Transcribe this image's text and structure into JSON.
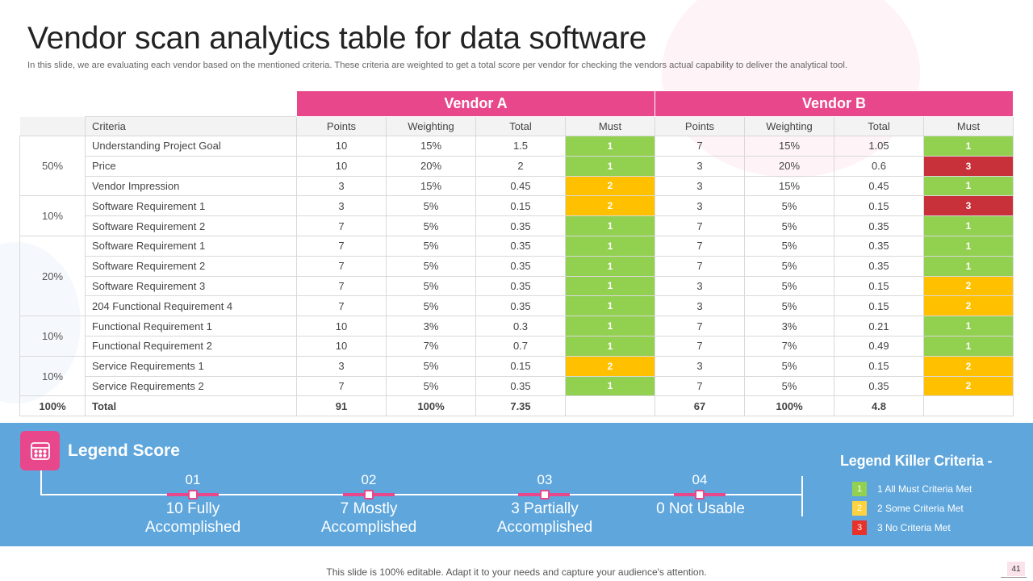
{
  "title": "Vendor scan analytics table for data software",
  "subtitle": "In this slide, we are evaluating each vendor based on the mentioned criteria. These criteria are weighted to get a total score per vendor for checking the vendors actual capability to  deliver the analytical tool.",
  "table": {
    "vendor_a": "Vendor A",
    "vendor_b": "Vendor B",
    "headers": {
      "criteria": "Criteria",
      "a_points": "Points",
      "a_weighting": "Weighting",
      "a_total": "Total",
      "a_must": "Must",
      "b_points": "Points",
      "b_weighting": "Weighting",
      "b_total": "Total",
      "b_must": "Must"
    },
    "groups": [
      "50%",
      "10%",
      "20%",
      "10%",
      "10%"
    ],
    "rows": [
      {
        "criteria": "Understanding  Project Goal",
        "a_points": "10",
        "a_weight": "15%",
        "a_total": "1.5",
        "a_must": "1",
        "b_points": "7",
        "b_weight": "15%",
        "b_total": "1.05",
        "b_must": "1"
      },
      {
        "criteria": "Price",
        "a_points": "10",
        "a_weight": "20%",
        "a_total": "2",
        "a_must": "1",
        "b_points": "3",
        "b_weight": "20%",
        "b_total": "0.6",
        "b_must": "3"
      },
      {
        "criteria": "Vendor Impression",
        "a_points": "3",
        "a_weight": "15%",
        "a_total": "0.45",
        "a_must": "2",
        "b_points": "3",
        "b_weight": "15%",
        "b_total": "0.45",
        "b_must": "1"
      },
      {
        "criteria": "Software Requirement  1",
        "a_points": "3",
        "a_weight": "5%",
        "a_total": "0.15",
        "a_must": "2",
        "b_points": "3",
        "b_weight": "5%",
        "b_total": "0.15",
        "b_must": "3"
      },
      {
        "criteria": "Software Requirement  2",
        "a_points": "7",
        "a_weight": "5%",
        "a_total": "0.35",
        "a_must": "1",
        "b_points": "7",
        "b_weight": "5%",
        "b_total": "0.35",
        "b_must": "1"
      },
      {
        "criteria": "Software Requirement  1",
        "a_points": "7",
        "a_weight": "5%",
        "a_total": "0.35",
        "a_must": "1",
        "b_points": "7",
        "b_weight": "5%",
        "b_total": "0.35",
        "b_must": "1"
      },
      {
        "criteria": "Software Requirement  2",
        "a_points": "7",
        "a_weight": "5%",
        "a_total": "0.35",
        "a_must": "1",
        "b_points": "7",
        "b_weight": "5%",
        "b_total": "0.35",
        "b_must": "1"
      },
      {
        "criteria": "Software Requirement  3",
        "a_points": "7",
        "a_weight": "5%",
        "a_total": "0.35",
        "a_must": "1",
        "b_points": "3",
        "b_weight": "5%",
        "b_total": "0.15",
        "b_must": "2"
      },
      {
        "criteria": "204 Functional Requirement  4",
        "a_points": "7",
        "a_weight": "5%",
        "a_total": "0.35",
        "a_must": "1",
        "b_points": "3",
        "b_weight": "5%",
        "b_total": "0.15",
        "b_must": "2"
      },
      {
        "criteria": "Functional Requirement  1",
        "a_points": "10",
        "a_weight": "3%",
        "a_total": "0.3",
        "a_must": "1",
        "b_points": "7",
        "b_weight": "3%",
        "b_total": "0.21",
        "b_must": "1"
      },
      {
        "criteria": "Functional Requirement  2",
        "a_points": "10",
        "a_weight": "7%",
        "a_total": "0.7",
        "a_must": "1",
        "b_points": "7",
        "b_weight": "7%",
        "b_total": "0.49",
        "b_must": "1"
      },
      {
        "criteria": "Service Requirements  1",
        "a_points": "3",
        "a_weight": "5%",
        "a_total": "0.15",
        "a_must": "2",
        "b_points": "3",
        "b_weight": "5%",
        "b_total": "0.15",
        "b_must": "2"
      },
      {
        "criteria": "Service Requirements  2",
        "a_points": "7",
        "a_weight": "5%",
        "a_total": "0.35",
        "a_must": "1",
        "b_points": "7",
        "b_weight": "5%",
        "b_total": "0.35",
        "b_must": "2"
      }
    ],
    "total": {
      "group": "100%",
      "label": "Total",
      "a_points": "91",
      "a_weight": "100%",
      "a_total": "7.35",
      "b_points": "67",
      "b_weight": "100%",
      "b_total": "4.8"
    }
  },
  "legend_score": {
    "title": "Legend Score",
    "items": [
      {
        "num": "01",
        "label": "10 Fully Accomplished"
      },
      {
        "num": "02",
        "label": "7 Mostly Accomplished"
      },
      {
        "num": "03",
        "label": "3 Partially Accomplished"
      },
      {
        "num": "04",
        "label": "0 Not Usable"
      }
    ]
  },
  "legend_killer": {
    "title": "Legend Killer Criteria -",
    "items": [
      {
        "badge": "1",
        "label": "1 All Must Criteria Met"
      },
      {
        "badge": "2",
        "label": "2 Some Criteria Met"
      },
      {
        "badge": "3",
        "label": "3 No Criteria Met"
      }
    ]
  },
  "colors": {
    "pink": "#e8488b",
    "green": "#92d050",
    "amber": "#ffc000",
    "red": "#c8303a",
    "blue_band": "#5ea6dc"
  },
  "footer": "This slide is 100% editable. Adapt it to your needs and capture your audience's attention.",
  "page_number": "41"
}
